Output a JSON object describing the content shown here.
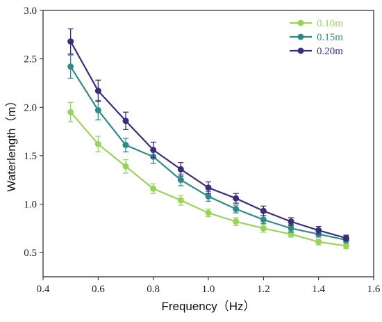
{
  "chart_data": {
    "type": "line",
    "xlabel": "Frequency（Hz）",
    "ylabel": "Waterlength（m）",
    "xlim": [
      0.4,
      1.6
    ],
    "ylim": [
      0.25,
      3.0
    ],
    "xticks": [
      "0.4",
      "0.6",
      "0.8",
      "1.0",
      "1.2",
      "1.4",
      "1.6"
    ],
    "yticks": [
      "0.5",
      "1.0",
      "1.5",
      "2.0",
      "2.5",
      "3.0"
    ],
    "grid": false,
    "legend_position": "top-right",
    "x": [
      0.5,
      0.6,
      0.7,
      0.8,
      0.9,
      1.0,
      1.1,
      1.2,
      1.3,
      1.4,
      1.5
    ],
    "series": [
      {
        "name": "0.10m",
        "color": "#99d45a",
        "values": [
          1.95,
          1.62,
          1.39,
          1.16,
          1.04,
          0.91,
          0.82,
          0.75,
          0.69,
          0.61,
          0.57
        ],
        "errors": [
          0.1,
          0.08,
          0.07,
          0.05,
          0.05,
          0.04,
          0.04,
          0.04,
          0.03,
          0.03,
          0.03
        ]
      },
      {
        "name": "0.15m",
        "color": "#2e8b88",
        "values": [
          2.42,
          1.97,
          1.61,
          1.49,
          1.25,
          1.08,
          0.95,
          0.84,
          0.75,
          0.69,
          0.63
        ],
        "errors": [
          0.12,
          0.1,
          0.07,
          0.07,
          0.06,
          0.05,
          0.04,
          0.04,
          0.04,
          0.03,
          0.03
        ]
      },
      {
        "name": "0.20m",
        "color": "#3a2d7e",
        "values": [
          2.68,
          2.17,
          1.86,
          1.56,
          1.36,
          1.17,
          1.06,
          0.93,
          0.82,
          0.73,
          0.65
        ],
        "errors": [
          0.13,
          0.11,
          0.09,
          0.08,
          0.07,
          0.06,
          0.05,
          0.05,
          0.04,
          0.04,
          0.03
        ]
      }
    ]
  }
}
